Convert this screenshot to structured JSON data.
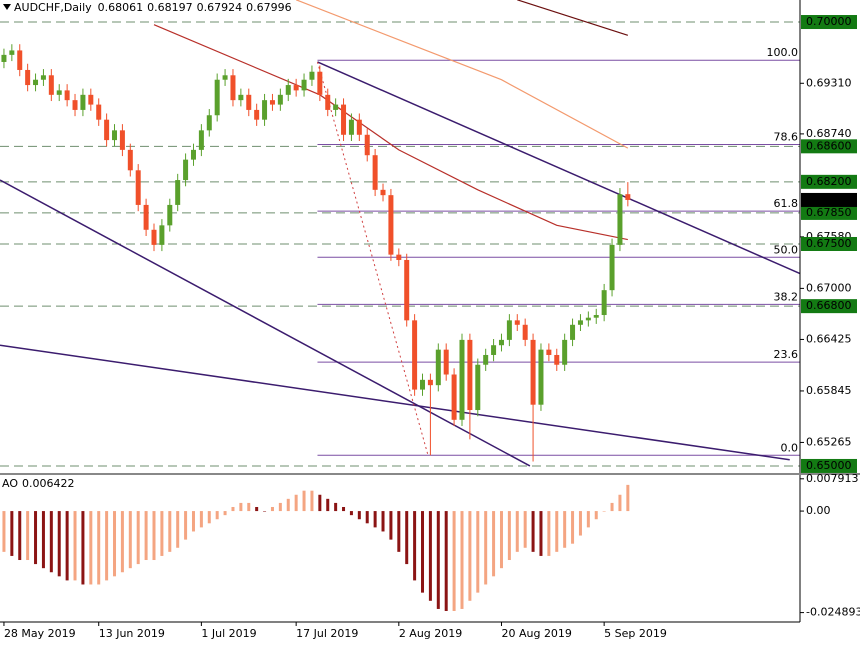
{
  "chart_data": {
    "type": "candlestick",
    "symbol": "AUDCHF,Daily",
    "xlim": [
      -0.5,
      100.8
    ],
    "ylim": [
      0.64932,
      0.70248
    ],
    "yticks": [
      {
        "value": 0.6931,
        "label": "0.69310"
      },
      {
        "value": 0.6874,
        "label": "0.68740"
      },
      {
        "value": 0.6758,
        "label": "0.67580"
      },
      {
        "value": 0.67,
        "label": "0.67000"
      },
      0.66425,
      0.65845,
      0.65265
    ],
    "levels": [
      {
        "value": 0.7,
        "label": "0.70000"
      },
      {
        "value": 0.686,
        "label": "0.68600"
      },
      {
        "value": 0.682,
        "label": "0.68200"
      },
      {
        "value": 0.6785,
        "label": "0.67850"
      },
      {
        "value": 0.675,
        "label": "0.67500"
      },
      {
        "value": 0.668,
        "label": "0.66800"
      },
      {
        "value": 0.65,
        "label": "0.65000"
      }
    ],
    "level_color": "#137a13",
    "level_line_color": "#6f8f6f",
    "current_price_color": "#000000",
    "up_color": "#5aa02c",
    "down_color": "#f0502a",
    "candles": [
      [
        0.6955,
        0.697,
        0.6948,
        0.6963
      ],
      [
        0.6963,
        0.6975,
        0.6956,
        0.6968
      ],
      [
        0.6968,
        0.6975,
        0.6939,
        0.6946
      ],
      [
        0.6946,
        0.6953,
        0.6922,
        0.6929
      ],
      [
        0.6929,
        0.6942,
        0.6922,
        0.6935
      ],
      [
        0.6935,
        0.6947,
        0.6928,
        0.694
      ],
      [
        0.694,
        0.6947,
        0.6911,
        0.6918
      ],
      [
        0.6918,
        0.693,
        0.6911,
        0.6923
      ],
      [
        0.6923,
        0.693,
        0.6905,
        0.6912
      ],
      [
        0.6912,
        0.6919,
        0.6894,
        0.6901
      ],
      [
        0.6901,
        0.6925,
        0.6894,
        0.6918
      ],
      [
        0.6918,
        0.6925,
        0.69,
        0.6907
      ],
      [
        0.6907,
        0.6914,
        0.6883,
        0.689
      ],
      [
        0.689,
        0.6897,
        0.686,
        0.6867
      ],
      [
        0.6867,
        0.6885,
        0.686,
        0.6878
      ],
      [
        0.6878,
        0.6885,
        0.6849,
        0.6856
      ],
      [
        0.6856,
        0.6863,
        0.6826,
        0.6833
      ],
      [
        0.6833,
        0.684,
        0.6787,
        0.6794
      ],
      [
        0.6794,
        0.6801,
        0.6759,
        0.6766
      ],
      [
        0.6766,
        0.6773,
        0.6742,
        0.6749
      ],
      [
        0.6749,
        0.6778,
        0.6742,
        0.6771
      ],
      [
        0.6771,
        0.6801,
        0.6764,
        0.6794
      ],
      [
        0.6794,
        0.6829,
        0.6787,
        0.6822
      ],
      [
        0.6822,
        0.6852,
        0.6815,
        0.6845
      ],
      [
        0.6845,
        0.6863,
        0.6838,
        0.6856
      ],
      [
        0.6856,
        0.6885,
        0.6849,
        0.6878
      ],
      [
        0.6878,
        0.6902,
        0.6871,
        0.6895
      ],
      [
        0.6895,
        0.6942,
        0.6888,
        0.6935
      ],
      [
        0.6935,
        0.6947,
        0.6928,
        0.694
      ],
      [
        0.694,
        0.6947,
        0.6905,
        0.6912
      ],
      [
        0.6912,
        0.6925,
        0.6905,
        0.6918
      ],
      [
        0.6918,
        0.6925,
        0.6894,
        0.6901
      ],
      [
        0.6901,
        0.6908,
        0.6883,
        0.689
      ],
      [
        0.689,
        0.6919,
        0.6883,
        0.6912
      ],
      [
        0.6912,
        0.6919,
        0.69,
        0.6907
      ],
      [
        0.6907,
        0.6925,
        0.69,
        0.6918
      ],
      [
        0.6918,
        0.6936,
        0.6911,
        0.6929
      ],
      [
        0.6929,
        0.6936,
        0.6916,
        0.6923
      ],
      [
        0.6923,
        0.6942,
        0.6916,
        0.6935
      ],
      [
        0.6935,
        0.6951,
        0.6928,
        0.6944
      ],
      [
        0.6944,
        0.6951,
        0.6911,
        0.6918
      ],
      [
        0.6918,
        0.6925,
        0.6894,
        0.6901
      ],
      [
        0.6901,
        0.6914,
        0.6894,
        0.6907
      ],
      [
        0.6907,
        0.6914,
        0.6866,
        0.6873
      ],
      [
        0.6873,
        0.6897,
        0.6866,
        0.689
      ],
      [
        0.689,
        0.6897,
        0.6866,
        0.6873
      ],
      [
        0.6873,
        0.688,
        0.6843,
        0.685
      ],
      [
        0.685,
        0.6857,
        0.6804,
        0.6811
      ],
      [
        0.6811,
        0.6818,
        0.6798,
        0.6805
      ],
      [
        0.6805,
        0.6812,
        0.6731,
        0.6738
      ],
      [
        0.6738,
        0.6745,
        0.6725,
        0.6732
      ],
      [
        0.6732,
        0.6739,
        0.6657,
        0.6664
      ],
      [
        0.6664,
        0.6671,
        0.6579,
        0.6586
      ],
      [
        0.6586,
        0.6604,
        0.6579,
        0.6597
      ],
      [
        0.6597,
        0.6604,
        0.6512,
        0.6591
      ],
      [
        0.6591,
        0.6638,
        0.6584,
        0.6631
      ],
      [
        0.6631,
        0.6638,
        0.6596,
        0.6603
      ],
      [
        0.6603,
        0.661,
        0.6545,
        0.6552
      ],
      [
        0.6552,
        0.6649,
        0.6545,
        0.6642
      ],
      [
        0.6642,
        0.6649,
        0.653,
        0.6563
      ],
      [
        0.6563,
        0.6621,
        0.6556,
        0.6614
      ],
      [
        0.6614,
        0.6632,
        0.6607,
        0.6625
      ],
      [
        0.6625,
        0.6643,
        0.6618,
        0.6636
      ],
      [
        0.6636,
        0.6649,
        0.6629,
        0.6642
      ],
      [
        0.6642,
        0.6671,
        0.6635,
        0.6664
      ],
      [
        0.6664,
        0.6671,
        0.6652,
        0.6659
      ],
      [
        0.6659,
        0.6666,
        0.6635,
        0.6642
      ],
      [
        0.6642,
        0.6649,
        0.6505,
        0.6569
      ],
      [
        0.6569,
        0.6638,
        0.6562,
        0.6631
      ],
      [
        0.6631,
        0.6638,
        0.6618,
        0.6625
      ],
      [
        0.6625,
        0.6632,
        0.6607,
        0.6614
      ],
      [
        0.6614,
        0.6649,
        0.6607,
        0.6642
      ],
      [
        0.6642,
        0.6666,
        0.6635,
        0.6659
      ],
      [
        0.6659,
        0.6671,
        0.6652,
        0.6664
      ],
      [
        0.6664,
        0.6674,
        0.6657,
        0.6667
      ],
      [
        0.6667,
        0.6677,
        0.666,
        0.667
      ],
      [
        0.667,
        0.6705,
        0.6663,
        0.6698
      ],
      [
        0.6698,
        0.6756,
        0.6691,
        0.6749
      ],
      [
        0.6749,
        0.6813,
        0.6742,
        0.6806
      ],
      [
        0.68061,
        0.68197,
        0.67924,
        0.67996
      ]
    ],
    "x_labels": [
      {
        "value": 0,
        "label": "28 May 2019"
      },
      {
        "value": 12,
        "label": "13 Jun 2019"
      },
      {
        "value": 25,
        "label": "1 Jul 2019"
      },
      {
        "value": 37,
        "label": "17 Jul 2019"
      },
      {
        "value": 50,
        "label": "2 Aug 2019"
      },
      {
        "value": 63,
        "label": "20 Aug 2019"
      },
      {
        "value": 76,
        "label": "5 Sep 2019"
      }
    ],
    "moving_averages": [
      {
        "color": "#b8302a",
        "points": [
          [
            19,
            0.6997
          ],
          [
            40,
            0.6918
          ],
          [
            50,
            0.6856
          ],
          [
            60,
            0.6811
          ],
          [
            70,
            0.6771
          ],
          [
            79,
            0.6755
          ]
        ]
      },
      {
        "color": "#f39a6e",
        "points": [
          [
            37,
            0.7025
          ],
          [
            50,
            0.698
          ],
          [
            63,
            0.6935
          ],
          [
            79,
            0.6858
          ]
        ]
      },
      {
        "color": "#6b0f0f",
        "points": [
          [
            65,
            0.7025
          ],
          [
            79,
            0.6985
          ]
        ]
      }
    ],
    "trend_lines": [
      {
        "color": "#3b1c6e",
        "points": [
          [
            39.7,
            0.6955
          ],
          [
            108.4,
            0.6687
          ]
        ]
      },
      {
        "color": "#3b1c6e",
        "points": [
          [
            -0.5,
            0.6822
          ],
          [
            66.6,
            0.65
          ]
        ]
      },
      {
        "color": "#3b1c6e",
        "points": [
          [
            -0.5,
            0.6636
          ],
          [
            99.5,
            0.6507
          ]
        ]
      }
    ],
    "dotted_line": {
      "color": "#d04040",
      "points": [
        [
          39.7,
          0.6955
        ],
        [
          53.7,
          0.6512
        ]
      ]
    },
    "fibonacci": {
      "color": "#7a4ea3",
      "start": 39.7,
      "levels": [
        {
          "value": 0.6957,
          "label": "100.0"
        },
        {
          "value": 0.6862,
          "label": "78.6"
        },
        {
          "value": 0.6787,
          "label": "61.8"
        },
        {
          "value": 0.6735,
          "label": "50.0"
        },
        {
          "value": 0.6682,
          "label": "38.2"
        },
        {
          "value": 0.6617,
          "label": "23.6"
        },
        {
          "value": 0.6512,
          "label": "0.0"
        }
      ]
    },
    "indicator": {
      "type": "bar",
      "name": "AO",
      "up_color": "#f4a582",
      "down_color": "#8b1414",
      "ylim": [
        -0.0272,
        0.0086
      ],
      "yticks": [
        0.007913,
        {
          "value": 0,
          "label": "0.00"
        },
        -0.024893
      ],
      "values": [
        -0.01,
        -0.011,
        -0.012,
        -0.012,
        -0.013,
        -0.014,
        -0.015,
        -0.016,
        -0.017,
        -0.017,
        -0.018,
        -0.018,
        -0.018,
        -0.017,
        -0.016,
        -0.015,
        -0.014,
        -0.013,
        -0.012,
        -0.012,
        -0.011,
        -0.01,
        -0.009,
        -0.007,
        -0.005,
        -0.004,
        -0.003,
        -0.002,
        -0.001,
        0.001,
        0.002,
        0.002,
        0.001,
        0.0,
        0.001,
        0.002,
        0.003,
        0.004,
        0.005,
        0.005,
        0.004,
        0.003,
        0.002,
        0.001,
        -0.001,
        -0.002,
        -0.003,
        -0.004,
        -0.005,
        -0.007,
        -0.01,
        -0.013,
        -0.017,
        -0.02,
        -0.022,
        -0.024,
        -0.0245,
        -0.0245,
        -0.024,
        -0.022,
        -0.02,
        -0.018,
        -0.016,
        -0.014,
        -0.012,
        -0.01,
        -0.009,
        -0.01,
        -0.011,
        -0.011,
        -0.01,
        -0.009,
        -0.008,
        -0.006,
        -0.004,
        -0.002,
        0.0,
        0.002,
        0.004,
        0.006422
      ]
    }
  }
}
